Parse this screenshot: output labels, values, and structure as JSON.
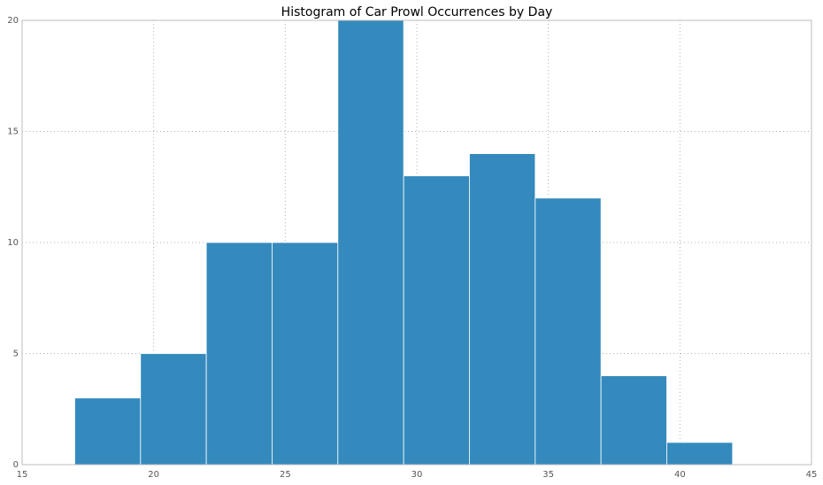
{
  "chart_data": {
    "type": "bar",
    "subtype": "histogram",
    "title": "Histogram of Car Prowl Occurrences by Day",
    "xlabel": "",
    "ylabel": "",
    "xlim": [
      15,
      45
    ],
    "ylim": [
      0,
      20
    ],
    "x_ticks": [
      15,
      20,
      25,
      30,
      35,
      40,
      45
    ],
    "y_ticks": [
      0,
      5,
      10,
      15,
      20
    ],
    "grid": true,
    "bin_edges": [
      17.0,
      19.5,
      22.0,
      24.5,
      27.0,
      29.5,
      32.0,
      34.5,
      37.0,
      39.5,
      42.0
    ],
    "values": [
      3,
      5,
      10,
      10,
      20,
      13,
      14,
      12,
      4,
      1
    ],
    "bar_color": "#348abd"
  }
}
